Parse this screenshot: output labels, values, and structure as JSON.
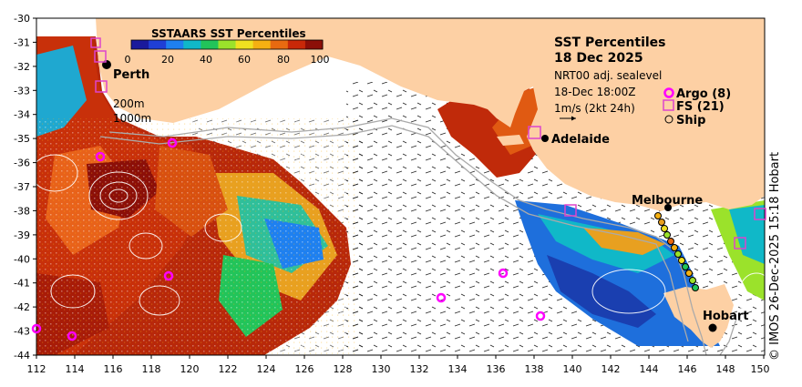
{
  "map": {
    "title_line1": "SST Percentiles",
    "title_line2": "18 Dec 2025",
    "product": "NRT00 adj. sealevel",
    "valid_time": "18-Dec 18:00Z",
    "current_scale": "1m/s (2kt 24h)",
    "credit": "© IMOS 26-Dec-2025 15:18 Hobart",
    "lat_ticks": [
      "-30",
      "-31",
      "-32",
      "-33",
      "-34",
      "-35",
      "-36",
      "-37",
      "-38",
      "-39",
      "-40",
      "-41",
      "-42",
      "-43",
      "-44"
    ],
    "lon_ticks": [
      "112",
      "114",
      "116",
      "118",
      "120",
      "122",
      "124",
      "126",
      "128",
      "130",
      "132",
      "134",
      "136",
      "138",
      "140",
      "142",
      "144",
      "146",
      "148",
      "150"
    ],
    "contours": {
      "c200": "200m",
      "c1000": "1000m"
    },
    "legend": {
      "argo": "Argo (8)",
      "fs": "FS (21)",
      "ship": "Ship"
    },
    "colorbar": {
      "title": "SSTAARS SST Percentiles",
      "ticks": [
        "0",
        "20",
        "40",
        "60",
        "80",
        "100"
      ],
      "colors": [
        "#1a1a9c",
        "#1f3fd6",
        "#1e80f0",
        "#10b8c8",
        "#22c45a",
        "#9be22b",
        "#f0e020",
        "#f5b012",
        "#e86a10",
        "#c82808",
        "#8c0f08"
      ]
    },
    "cities": [
      {
        "name": "Perth"
      },
      {
        "name": "Adelaide"
      },
      {
        "name": "Melbourne"
      },
      {
        "name": "Hobart"
      }
    ],
    "colors": {
      "land": "#fdd0a4",
      "argo": "#ff00ff",
      "fs": "#dd44cc"
    }
  }
}
